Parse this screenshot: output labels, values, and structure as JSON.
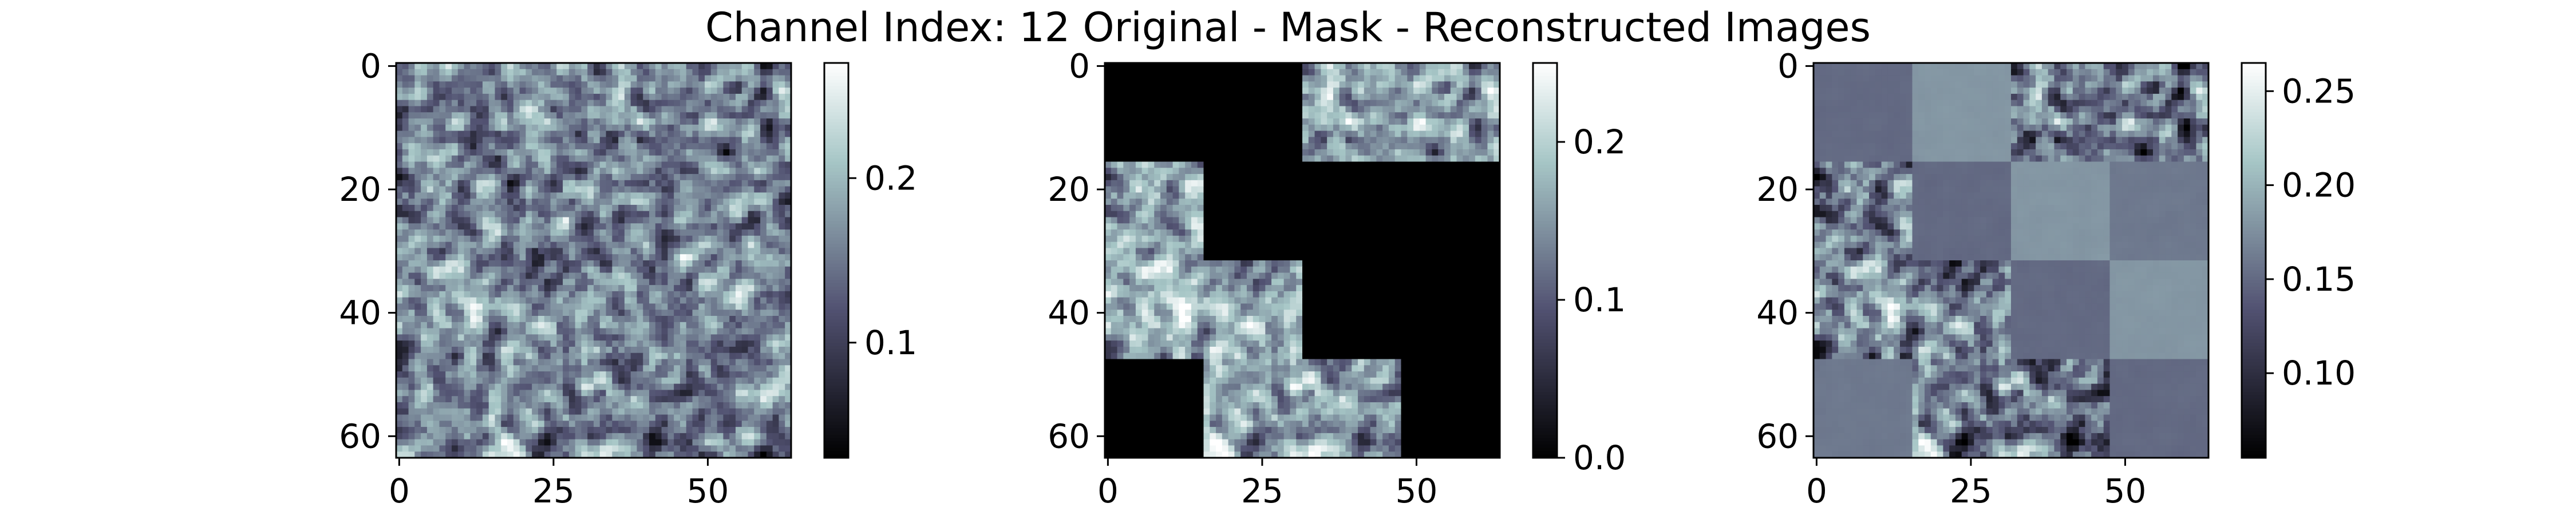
{
  "chart_data": {
    "type": "heatmap",
    "title": "Channel Index: 12 Original - Mask - Reconstructed Images",
    "colormap": "bone",
    "grid": false,
    "panels": [
      {
        "name": "original",
        "rows": 64,
        "cols": 64,
        "xlim": [
          -0.5,
          63.5
        ],
        "ylim": [
          63.5,
          -0.5
        ],
        "x_ticks": [
          0,
          25,
          50
        ],
        "y_ticks": [
          0,
          20,
          40,
          60
        ],
        "colorbar": {
          "vmin": 0.03,
          "vmax": 0.27,
          "ticks": [
            0.1,
            0.2
          ],
          "tick_labels": [
            "0.1",
            "0.2"
          ]
        },
        "value_range": [
          0.03,
          0.27
        ],
        "patch_grid": {
          "patch_size": 16,
          "visible_patches": "all"
        }
      },
      {
        "name": "mask",
        "rows": 64,
        "cols": 64,
        "xlim": [
          -0.5,
          63.5
        ],
        "ylim": [
          63.5,
          -0.5
        ],
        "x_ticks": [
          0,
          25,
          50
        ],
        "y_ticks": [
          0,
          20,
          40,
          60
        ],
        "colorbar": {
          "vmin": 0.0,
          "vmax": 0.25,
          "ticks": [
            0.0,
            0.1,
            0.2
          ],
          "tick_labels": [
            "0.0",
            "0.1",
            "0.2"
          ]
        },
        "patch_grid": {
          "patch_size": 16,
          "visible_patches": [
            [
              0,
              2
            ],
            [
              0,
              3
            ],
            [
              1,
              0
            ],
            [
              2,
              0
            ],
            [
              2,
              1
            ],
            [
              3,
              1
            ],
            [
              3,
              2
            ]
          ],
          "masked_value": 0.0
        }
      },
      {
        "name": "reconstructed",
        "rows": 64,
        "cols": 64,
        "xlim": [
          -0.5,
          63.5
        ],
        "ylim": [
          63.5,
          -0.5
        ],
        "x_ticks": [
          0,
          25,
          50
        ],
        "y_ticks": [
          0,
          20,
          40,
          60
        ],
        "colorbar": {
          "vmin": 0.055,
          "vmax": 0.265,
          "ticks": [
            0.1,
            0.15,
            0.2,
            0.25
          ],
          "tick_labels": [
            "0.10",
            "0.15",
            "0.20",
            "0.25"
          ]
        },
        "patch_grid": {
          "patch_size": 16,
          "visible_patches": [
            [
              0,
              2
            ],
            [
              0,
              3
            ],
            [
              1,
              0
            ],
            [
              2,
              0
            ],
            [
              2,
              1
            ],
            [
              3,
              1
            ],
            [
              3,
              2
            ]
          ],
          "reconstructed_value_range": [
            0.15,
            0.19
          ]
        }
      }
    ]
  }
}
